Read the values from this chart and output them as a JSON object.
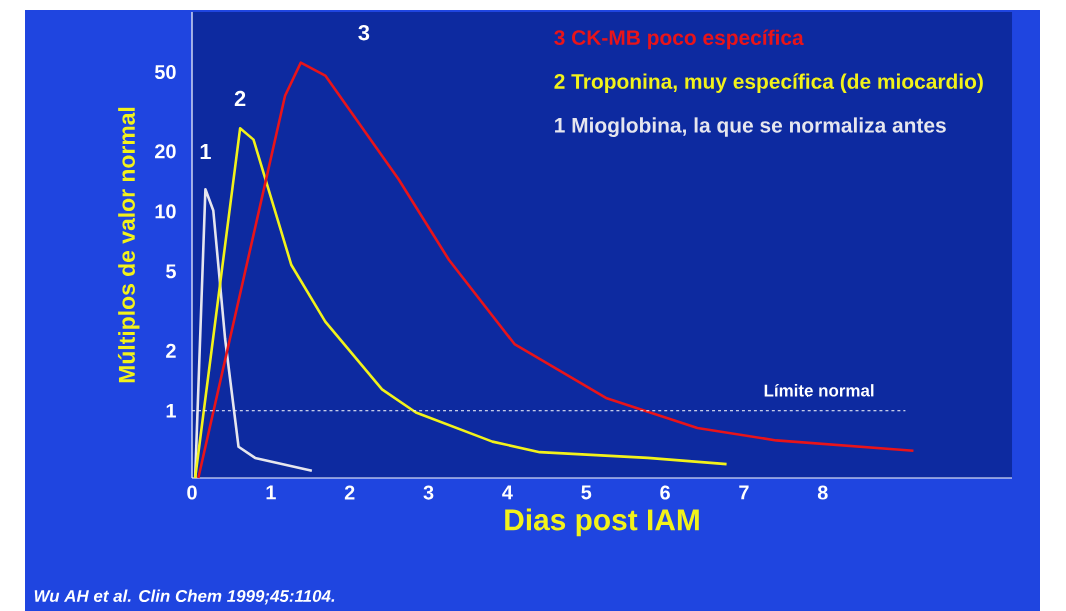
{
  "chart_data": {
    "type": "line",
    "xlabel": "Dias post IAM",
    "ylabel": "Múltiplos de valor normal",
    "series": [
      {
        "name": "1 Mioglobina,  la que se normaliza antes",
        "color": "#e6e6ee",
        "x": [
          0.04,
          0.17,
          0.27,
          0.42,
          0.59,
          0.8,
          1.52
        ],
        "values": [
          0.46,
          12.9,
          10.1,
          2.29,
          0.66,
          0.58,
          0.5
        ]
      },
      {
        "name": "2 Troponina,  muy específica  (de miocardio)",
        "color": "#f2f21a",
        "x": [
          0.04,
          0.61,
          0.78,
          1.26,
          1.69,
          2.41,
          2.84,
          3.81,
          4.41,
          5.78,
          6.78
        ],
        "values": [
          0.46,
          26.1,
          22.9,
          5.38,
          2.8,
          1.28,
          0.98,
          0.7,
          0.62,
          0.58,
          0.54
        ]
      },
      {
        "name": "3 CK-MB  poco  específica",
        "color": "#e8141a",
        "x": [
          0.08,
          1.18,
          1.38,
          1.69,
          2.62,
          3.26,
          4.09,
          5.25,
          6.41,
          7.41,
          9.15
        ],
        "values": [
          0.46,
          38,
          55.7,
          48,
          14.5,
          5.7,
          2.16,
          1.16,
          0.82,
          0.71,
          0.63
        ]
      }
    ],
    "xlim": [
      0,
      10.4
    ],
    "ylim": [
      0.46,
      100
    ],
    "log": "y",
    "xticks": [
      0,
      1,
      2,
      3,
      4,
      5,
      6,
      7,
      8
    ],
    "yticks": [
      1,
      2,
      5,
      10,
      20,
      50
    ],
    "legend": "top right",
    "ref_lines": [
      {
        "axis": "y",
        "value": 1,
        "label": "Límite normal",
        "color": "#ffffff",
        "line_style": "dashed"
      }
    ],
    "annotations": [
      "1",
      "2",
      "3",
      "Wu AH et al. Clin Chem 1999;45:1104."
    ]
  }
}
